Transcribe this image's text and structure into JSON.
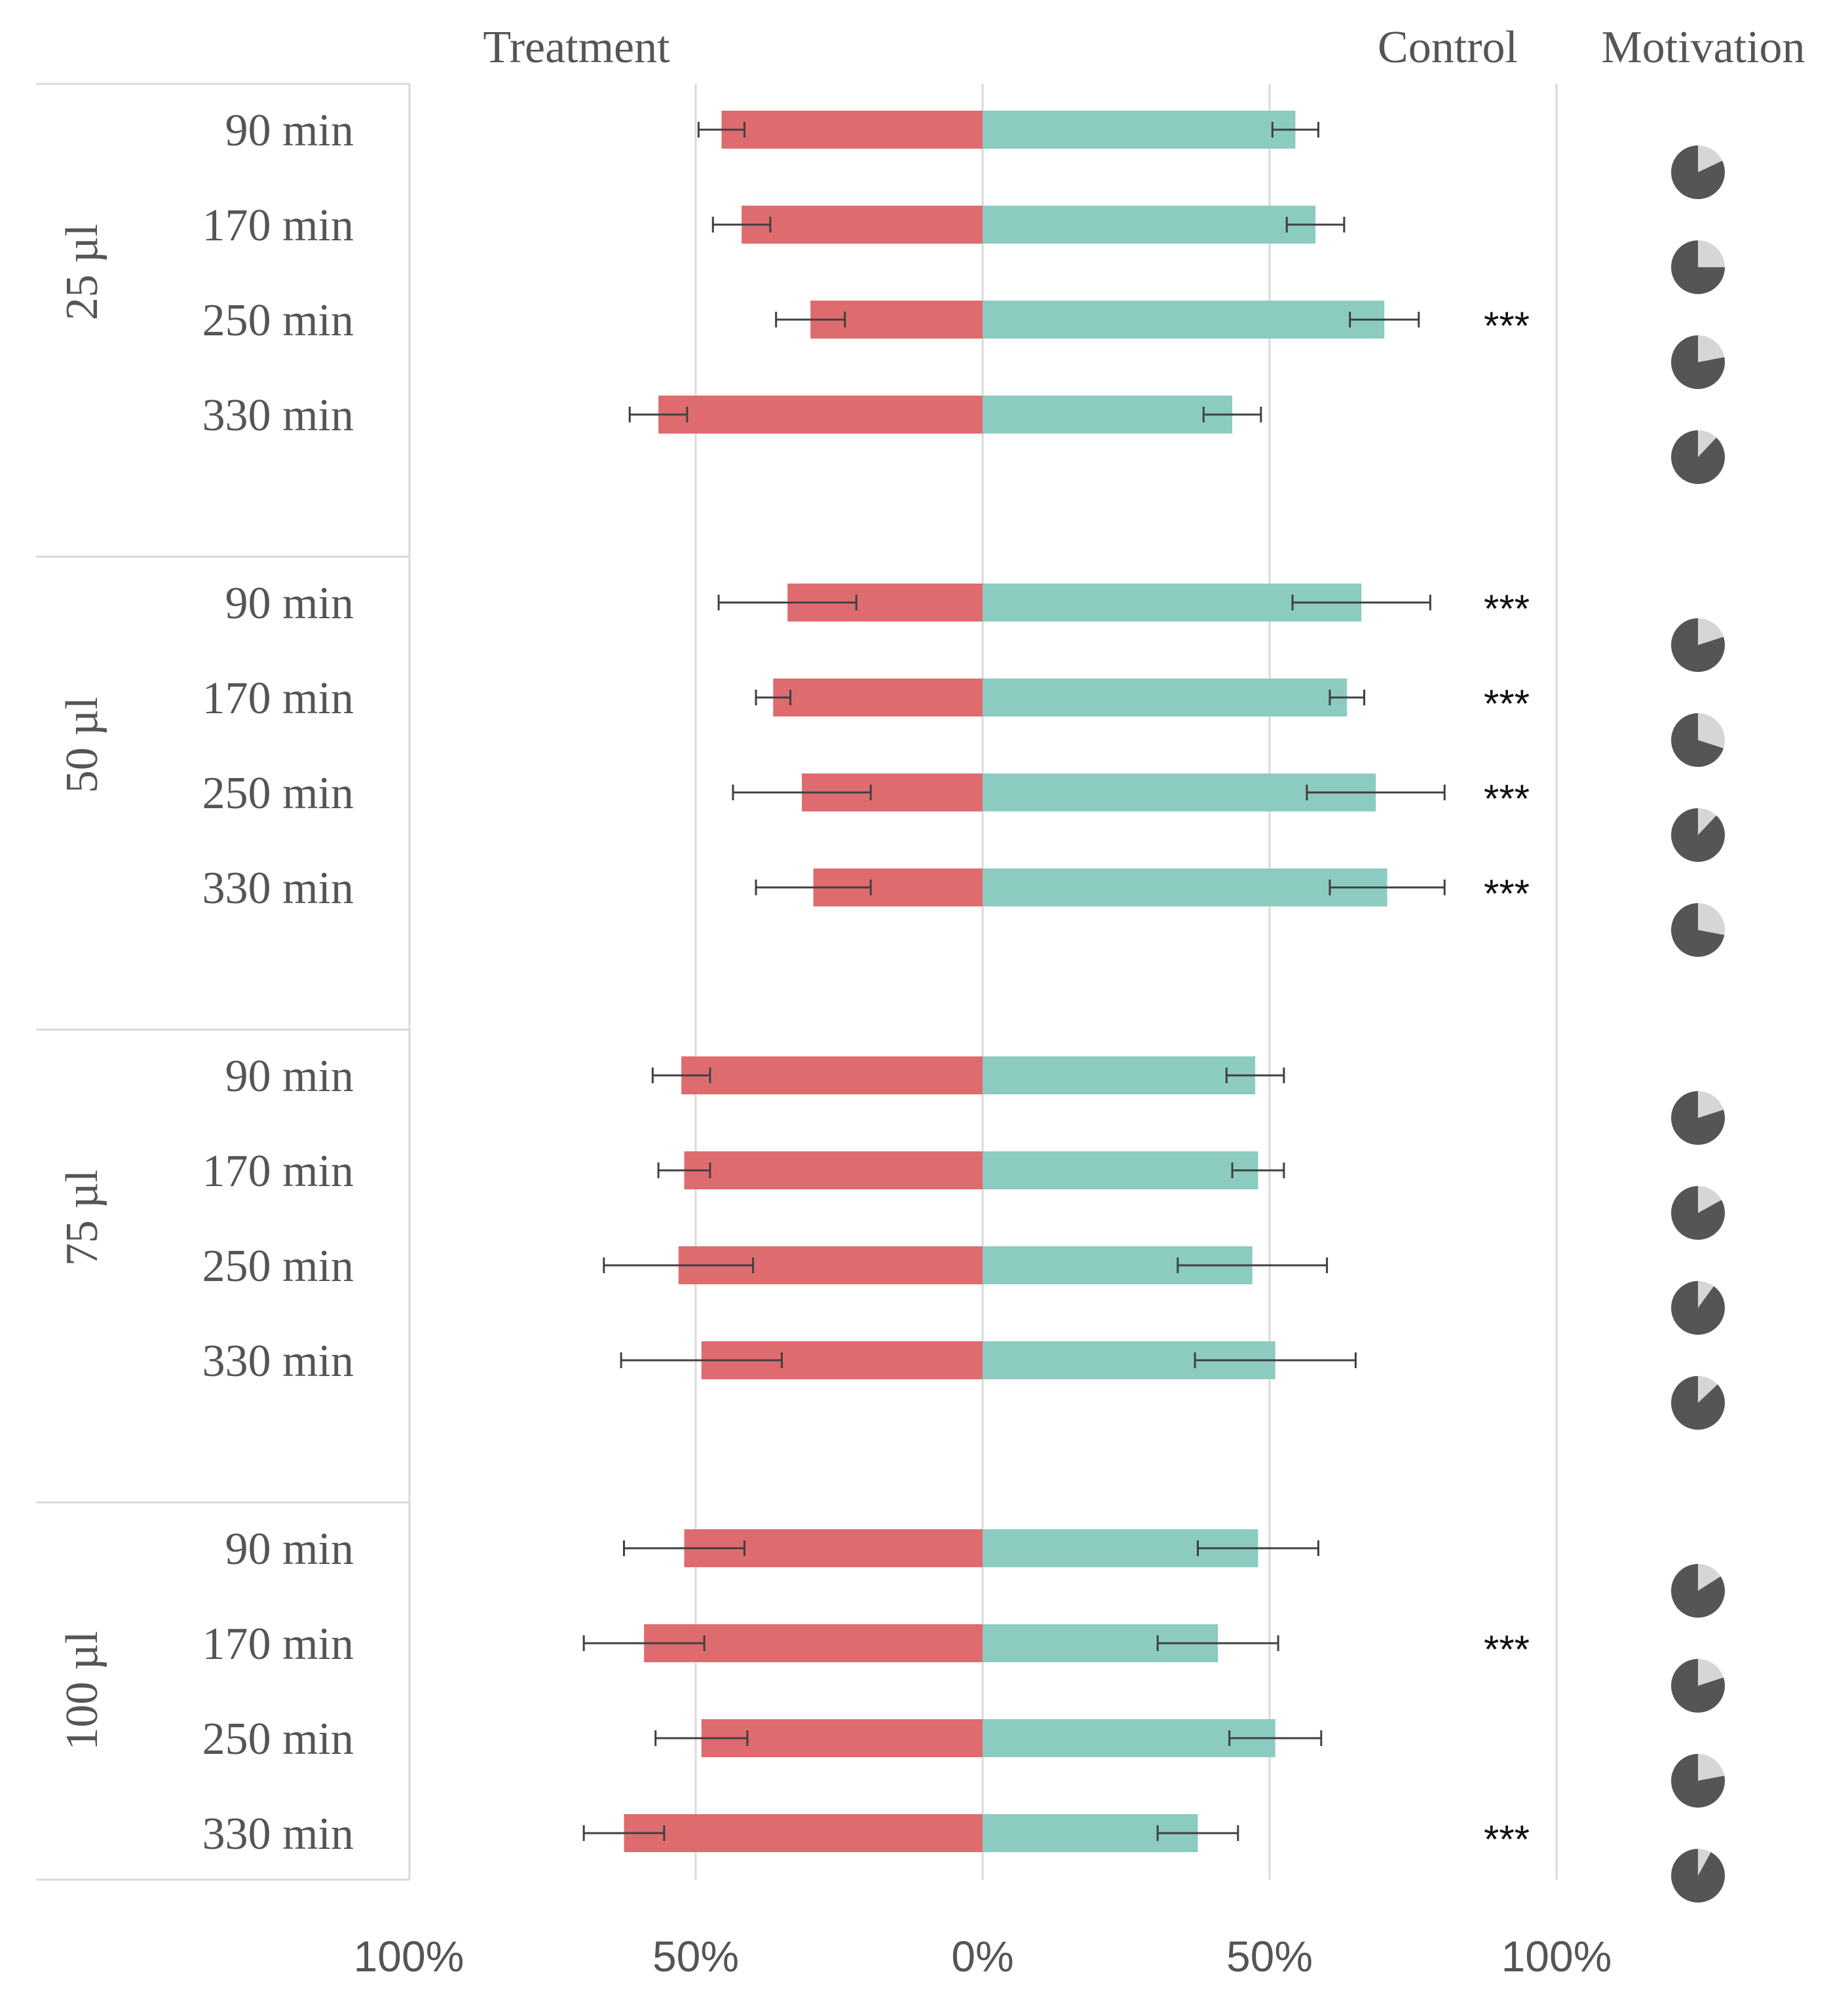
{
  "chart_data": {
    "type": "bar",
    "subtype": "diverging-horizontal-bar-with-pies",
    "headers": {
      "treatment": "Treatment",
      "control": "Control",
      "motivation": "Motivation"
    },
    "xaxis": {
      "range": [
        -100,
        100
      ],
      "ticks": [
        -100,
        -50,
        0,
        50,
        100
      ],
      "tick_labels": [
        "100%",
        "50%",
        "0%",
        "50%",
        "100%"
      ]
    },
    "colors": {
      "treatment": "#de6c6f",
      "control": "#8ccbbf",
      "pie_dark": "#555555",
      "pie_light": "#d6d6d6",
      "grid": "#d9d9d9",
      "errorbar": "#404040"
    },
    "groups": [
      {
        "label": "25 µl",
        "rows": [
          {
            "time": "90 min",
            "treatment": 45.5,
            "treatment_err": 4,
            "control": 54.5,
            "control_err": 4,
            "significance": "",
            "motivation": 82
          },
          {
            "time": "170 min",
            "treatment": 42,
            "treatment_err": 5,
            "control": 58,
            "control_err": 5,
            "significance": "",
            "motivation": 75
          },
          {
            "time": "250 min",
            "treatment": 30,
            "treatment_err": 6,
            "control": 70,
            "control_err": 6,
            "significance": "***",
            "motivation": 78
          },
          {
            "time": "330 min",
            "treatment": 56.5,
            "treatment_err": 5,
            "control": 43.5,
            "control_err": 5,
            "significance": "",
            "motivation": 88
          }
        ]
      },
      {
        "label": "50 µl",
        "rows": [
          {
            "time": "90 min",
            "treatment": 34,
            "treatment_err": 12,
            "control": 66,
            "control_err": 12,
            "significance": "***",
            "motivation": 80
          },
          {
            "time": "170 min",
            "treatment": 36.5,
            "treatment_err": 3,
            "control": 63.5,
            "control_err": 3,
            "significance": "***",
            "motivation": 70
          },
          {
            "time": "250 min",
            "treatment": 31.5,
            "treatment_err": 12,
            "control": 68.5,
            "control_err": 12,
            "significance": "***",
            "motivation": 88
          },
          {
            "time": "330 min",
            "treatment": 29.5,
            "treatment_err": 10,
            "control": 70.5,
            "control_err": 10,
            "significance": "***",
            "motivation": 72
          }
        ]
      },
      {
        "label": "75 µl",
        "rows": [
          {
            "time": "90 min",
            "treatment": 52.5,
            "treatment_err": 5,
            "control": 47.5,
            "control_err": 5,
            "significance": "",
            "motivation": 80
          },
          {
            "time": "170 min",
            "treatment": 52,
            "treatment_err": 4.5,
            "control": 48,
            "control_err": 4.5,
            "significance": "",
            "motivation": 83
          },
          {
            "time": "250 min",
            "treatment": 53,
            "treatment_err": 13,
            "control": 47,
            "control_err": 13,
            "significance": "",
            "motivation": 90
          },
          {
            "time": "330 min",
            "treatment": 49,
            "treatment_err": 14,
            "control": 51,
            "control_err": 14,
            "significance": "",
            "motivation": 87
          }
        ]
      },
      {
        "label": "100 µl",
        "rows": [
          {
            "time": "90 min",
            "treatment": 52,
            "treatment_err": 10.5,
            "control": 48,
            "control_err": 10.5,
            "significance": "",
            "motivation": 84
          },
          {
            "time": "170 min",
            "treatment": 59,
            "treatment_err": 10.5,
            "control": 41,
            "control_err": 10.5,
            "significance": "***",
            "motivation": 80
          },
          {
            "time": "250 min",
            "treatment": 49,
            "treatment_err": 8,
            "control": 51,
            "control_err": 8,
            "significance": "",
            "motivation": 78
          },
          {
            "time": "330 min",
            "treatment": 62.5,
            "treatment_err": 7,
            "control": 37.5,
            "control_err": 7,
            "significance": "***",
            "motivation": 92
          }
        ]
      }
    ]
  }
}
